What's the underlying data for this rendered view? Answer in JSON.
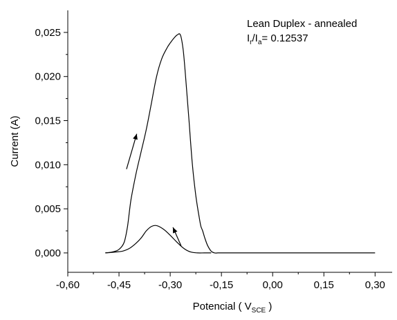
{
  "chart_data": {
    "type": "line",
    "title": "",
    "annotation": {
      "line1": "Lean Duplex - annealed",
      "line2_parts": [
        "I",
        "r",
        "/I",
        "a",
        "= 0.12537"
      ]
    },
    "xlabel_parts": [
      "Potencial ( V",
      "SCE",
      " )"
    ],
    "ylabel": "Current (A)",
    "xlim": [
      -0.6,
      0.35
    ],
    "ylim": [
      -0.0022,
      0.0275
    ],
    "x_ticks": [
      -0.6,
      -0.45,
      -0.3,
      -0.15,
      0.0,
      0.15,
      0.3
    ],
    "x_tick_labels": [
      "-0,60",
      "-0,45",
      "-0,30",
      "-0,15",
      "0,00",
      "0,15",
      "0,30"
    ],
    "y_ticks": [
      0.0,
      0.005,
      0.01,
      0.015,
      0.02,
      0.025
    ],
    "y_tick_labels": [
      "0,000",
      "0,005",
      "0,010",
      "0,015",
      "0,020",
      "0,025"
    ],
    "grid": false,
    "series": [
      {
        "x": [
          -0.49,
          -0.47,
          -0.45,
          -0.435,
          -0.425,
          -0.415,
          -0.4,
          -0.385,
          -0.37,
          -0.355,
          -0.34,
          -0.325,
          -0.31,
          -0.3,
          -0.29,
          -0.28,
          -0.27,
          -0.262,
          -0.255,
          -0.245,
          -0.235,
          -0.225,
          -0.215,
          -0.21,
          -0.205,
          -0.198,
          -0.19,
          -0.18,
          -0.17,
          -0.16,
          -0.15,
          -0.1,
          0.0,
          0.1,
          0.2,
          0.3
        ],
        "y": [
          0.0,
          0.0001,
          0.0004,
          0.0012,
          0.003,
          0.006,
          0.009,
          0.0115,
          0.014,
          0.017,
          0.02,
          0.022,
          0.0232,
          0.0238,
          0.0243,
          0.0247,
          0.0247,
          0.023,
          0.02,
          0.015,
          0.01,
          0.0065,
          0.004,
          0.003,
          0.0025,
          0.0016,
          0.0008,
          0.0002,
          0.0,
          0.0,
          0.0,
          0.0,
          0.0,
          0.0,
          0.0,
          0.0
        ]
      },
      {
        "x": [
          -0.18,
          -0.2,
          -0.22,
          -0.24,
          -0.26,
          -0.28,
          -0.3,
          -0.32,
          -0.34,
          -0.355,
          -0.37,
          -0.385,
          -0.4,
          -0.42,
          -0.44,
          -0.46,
          -0.49
        ],
        "y": [
          0.0,
          0.0,
          0.0,
          0.0001,
          0.0005,
          0.0012,
          0.002,
          0.0027,
          0.0031,
          0.003,
          0.0025,
          0.0017,
          0.0011,
          0.0005,
          0.0002,
          0.0001,
          0.0
        ]
      }
    ],
    "arrows": [
      {
        "from": [
          -0.428,
          0.0095
        ],
        "to": [
          -0.398,
          0.0135
        ]
      },
      {
        "from": [
          -0.268,
          0.0008
        ],
        "to": [
          -0.292,
          0.0029
        ]
      }
    ]
  }
}
